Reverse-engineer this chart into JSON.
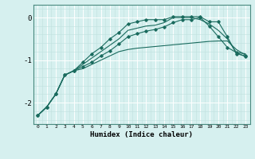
{
  "xlabel": "Humidex (Indice chaleur)",
  "ylabel": "",
  "bg_color": "#d6f0ef",
  "line_color": "#1a6b5e",
  "grid_color": "#ffffff",
  "minor_grid_color": "#c0e0de",
  "xlim": [
    -0.5,
    23.5
  ],
  "ylim": [
    -2.5,
    0.3
  ],
  "yticks": [
    0,
    -1,
    -2
  ],
  "xticks": [
    0,
    1,
    2,
    3,
    4,
    5,
    6,
    7,
    8,
    9,
    10,
    11,
    12,
    13,
    14,
    15,
    16,
    17,
    18,
    19,
    20,
    21,
    22,
    23
  ],
  "series": [
    {
      "x": [
        0,
        1,
        2,
        3,
        4,
        5,
        6,
        7,
        8,
        9,
        10,
        11,
        12,
        13,
        14,
        15,
        16,
        17,
        18,
        19,
        20,
        21,
        22,
        23
      ],
      "y": [
        -2.3,
        -2.1,
        -1.8,
        -1.35,
        -1.25,
        -1.05,
        -0.85,
        -0.7,
        -0.5,
        -0.35,
        -0.15,
        -0.1,
        -0.05,
        -0.05,
        -0.05,
        0.02,
        0.02,
        0.02,
        0.02,
        -0.1,
        -0.1,
        -0.45,
        -0.85,
        -0.9
      ],
      "marker": true
    },
    {
      "x": [
        0,
        1,
        2,
        3,
        4,
        5,
        6,
        7,
        8,
        9,
        10,
        11,
        12,
        13,
        14,
        15,
        16,
        17,
        18,
        19,
        20,
        21,
        22,
        23
      ],
      "y": [
        -2.3,
        -2.1,
        -1.8,
        -1.35,
        -1.25,
        -1.1,
        -0.95,
        -0.8,
        -0.65,
        -0.5,
        -0.3,
        -0.25,
        -0.2,
        -0.18,
        -0.12,
        0.0,
        0.0,
        0.0,
        -0.05,
        -0.15,
        -0.3,
        -0.5,
        -0.82,
        -0.85
      ],
      "marker": false
    },
    {
      "x": [
        0,
        1,
        2,
        3,
        4,
        5,
        6,
        7,
        8,
        9,
        10,
        11,
        12,
        13,
        14,
        15,
        16,
        17,
        18,
        19,
        20,
        21,
        22,
        23
      ],
      "y": [
        -2.3,
        -2.1,
        -1.8,
        -1.35,
        -1.25,
        -1.15,
        -1.05,
        -0.9,
        -0.78,
        -0.62,
        -0.45,
        -0.38,
        -0.32,
        -0.28,
        -0.22,
        -0.12,
        -0.05,
        -0.05,
        0.0,
        -0.2,
        -0.45,
        -0.7,
        -0.82,
        -0.92
      ],
      "marker": true
    },
    {
      "x": [
        0,
        1,
        2,
        3,
        4,
        5,
        6,
        7,
        8,
        9,
        10,
        11,
        12,
        13,
        14,
        15,
        16,
        17,
        18,
        19,
        20,
        21,
        22,
        23
      ],
      "y": [
        -2.3,
        -2.1,
        -1.8,
        -1.35,
        -1.25,
        -1.2,
        -1.1,
        -1.0,
        -0.9,
        -0.8,
        -0.75,
        -0.72,
        -0.7,
        -0.68,
        -0.66,
        -0.64,
        -0.62,
        -0.6,
        -0.58,
        -0.56,
        -0.55,
        -0.55,
        -0.75,
        -0.88
      ],
      "marker": false
    }
  ]
}
